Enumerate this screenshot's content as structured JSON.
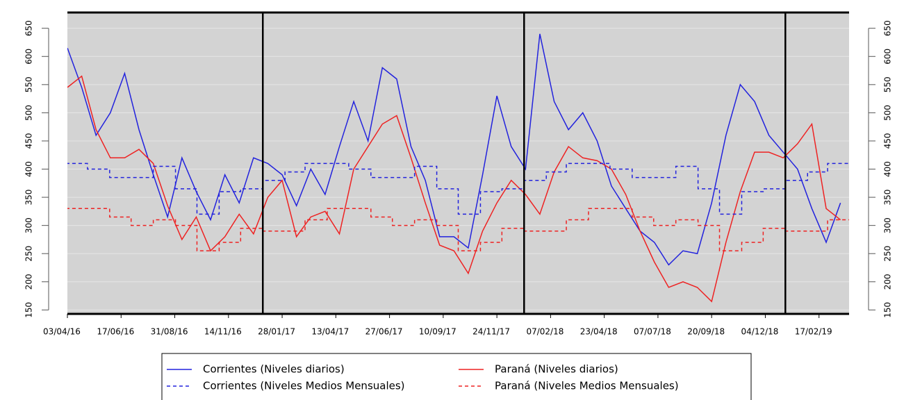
{
  "chart_data": {
    "type": "line",
    "xlim": [
      "2016-04-03",
      "2019-03-31"
    ],
    "ylim": [
      143,
      678
    ],
    "yticks": [
      150,
      200,
      250,
      300,
      350,
      400,
      450,
      500,
      550,
      600,
      650
    ],
    "xticks": [
      {
        "value": "2016-04-03",
        "label": "03/04/16"
      },
      {
        "value": "2016-06-17",
        "label": "17/06/16"
      },
      {
        "value": "2016-08-31",
        "label": "31/08/16"
      },
      {
        "value": "2016-11-14",
        "label": "14/11/16"
      },
      {
        "value": "2017-01-28",
        "label": "28/01/17"
      },
      {
        "value": "2017-04-13",
        "label": "13/04/17"
      },
      {
        "value": "2017-06-27",
        "label": "27/06/17"
      },
      {
        "value": "2017-09-10",
        "label": "10/09/17"
      },
      {
        "value": "2017-11-24",
        "label": "24/11/17"
      },
      {
        "value": "2018-02-07",
        "label": "07/02/18"
      },
      {
        "value": "2018-04-23",
        "label": "23/04/18"
      },
      {
        "value": "2018-07-07",
        "label": "07/07/18"
      },
      {
        "value": "2018-09-20",
        "label": "20/09/18"
      },
      {
        "value": "2018-12-04",
        "label": "04/12/18"
      },
      {
        "value": "2019-02-17",
        "label": "17/02/19"
      }
    ],
    "vlines": [
      "2017-01-01",
      "2018-01-01",
      "2019-01-01"
    ],
    "legend": "bottom",
    "x": [
      "2016-04-03",
      "2016-04-23",
      "2016-05-13",
      "2016-06-02",
      "2016-06-22",
      "2016-07-12",
      "2016-08-01",
      "2016-08-21",
      "2016-09-10",
      "2016-09-30",
      "2016-10-20",
      "2016-11-09",
      "2016-11-29",
      "2016-12-19",
      "2017-01-08",
      "2017-01-28",
      "2017-02-17",
      "2017-03-09",
      "2017-03-29",
      "2017-04-18",
      "2017-05-08",
      "2017-05-28",
      "2017-06-17",
      "2017-07-07",
      "2017-07-27",
      "2017-08-16",
      "2017-09-05",
      "2017-09-25",
      "2017-10-15",
      "2017-11-04",
      "2017-11-24",
      "2017-12-14",
      "2018-01-03",
      "2018-01-23",
      "2018-02-12",
      "2018-03-04",
      "2018-03-24",
      "2018-04-13",
      "2018-05-03",
      "2018-05-23",
      "2018-06-12",
      "2018-07-02",
      "2018-07-22",
      "2018-08-11",
      "2018-08-31",
      "2018-09-20",
      "2018-10-10",
      "2018-10-30",
      "2018-11-19",
      "2018-12-09",
      "2018-12-29",
      "2019-01-18",
      "2019-02-07",
      "2019-02-27",
      "2019-03-19"
    ],
    "series": [
      {
        "name": "Corrientes (Niveles diarios)",
        "color": "#2222dd",
        "dash": false,
        "values": [
          615,
          545,
          460,
          500,
          570,
          470,
          390,
          315,
          420,
          360,
          310,
          390,
          340,
          420,
          410,
          390,
          335,
          400,
          355,
          440,
          520,
          450,
          580,
          560,
          440,
          380,
          280,
          280,
          260,
          390,
          530,
          440,
          400,
          640,
          520,
          470,
          500,
          450,
          370,
          330,
          290,
          270,
          230,
          255,
          250,
          340,
          460,
          550,
          520,
          460,
          430,
          400,
          330,
          270,
          340
        ]
      },
      {
        "name": "Paraná (Niveles diarios)",
        "color": "#ee2222",
        "dash": false,
        "values": [
          545,
          565,
          470,
          420,
          420,
          435,
          410,
          335,
          275,
          315,
          255,
          280,
          320,
          285,
          350,
          380,
          280,
          315,
          325,
          285,
          400,
          440,
          480,
          495,
          420,
          340,
          265,
          255,
          215,
          290,
          340,
          380,
          355,
          320,
          395,
          440,
          420,
          415,
          400,
          355,
          290,
          235,
          190,
          200,
          190,
          165,
          270,
          360,
          430,
          430,
          420,
          445,
          480,
          330,
          310
        ]
      },
      {
        "name": "Corrientes (Niveles Medios Mensuales)",
        "color": "#2222dd",
        "dash": true,
        "x": [
          "2016-04-01",
          "2016-05-01",
          "2016-06-01",
          "2016-07-01",
          "2016-08-01",
          "2016-09-01",
          "2016-10-01",
          "2016-11-01",
          "2016-12-01",
          "2017-01-01",
          "2017-02-01",
          "2017-03-01",
          "2017-04-01",
          "2017-05-01",
          "2017-06-01",
          "2017-07-01",
          "2017-08-01",
          "2017-09-01",
          "2017-10-01",
          "2017-11-01",
          "2017-12-01",
          "2018-01-01",
          "2018-02-01",
          "2018-03-01",
          "2018-04-01",
          "2018-05-01",
          "2018-06-01",
          "2018-07-01",
          "2018-08-01",
          "2018-09-01",
          "2018-10-01",
          "2018-11-01",
          "2018-12-01",
          "2019-01-01",
          "2019-02-01",
          "2019-03-01"
        ],
        "values": [
          410,
          400,
          385,
          385,
          405,
          365,
          320,
          360,
          365,
          380,
          395,
          410,
          410,
          400,
          385,
          385,
          405,
          365,
          320,
          360,
          365,
          380,
          395,
          410,
          410,
          400,
          385,
          385,
          405,
          365,
          320,
          360,
          365,
          380,
          395,
          410
        ]
      },
      {
        "name": "Paraná (Niveles Medios Mensuales)",
        "color": "#ee2222",
        "dash": true,
        "x": [
          "2016-04-01",
          "2016-05-01",
          "2016-06-01",
          "2016-07-01",
          "2016-08-01",
          "2016-09-01",
          "2016-10-01",
          "2016-11-01",
          "2016-12-01",
          "2017-01-01",
          "2017-02-01",
          "2017-03-01",
          "2017-04-01",
          "2017-05-01",
          "2017-06-01",
          "2017-07-01",
          "2017-08-01",
          "2017-09-01",
          "2017-10-01",
          "2017-11-01",
          "2017-12-01",
          "2018-01-01",
          "2018-02-01",
          "2018-03-01",
          "2018-04-01",
          "2018-05-01",
          "2018-06-01",
          "2018-07-01",
          "2018-08-01",
          "2018-09-01",
          "2018-10-01",
          "2018-11-01",
          "2018-12-01",
          "2019-01-01",
          "2019-02-01",
          "2019-03-01"
        ],
        "values": [
          330,
          330,
          315,
          300,
          310,
          300,
          255,
          270,
          295,
          290,
          290,
          310,
          330,
          330,
          315,
          300,
          310,
          300,
          255,
          270,
          295,
          290,
          290,
          310,
          330,
          330,
          315,
          300,
          310,
          300,
          255,
          270,
          295,
          290,
          290,
          310
        ]
      }
    ]
  }
}
